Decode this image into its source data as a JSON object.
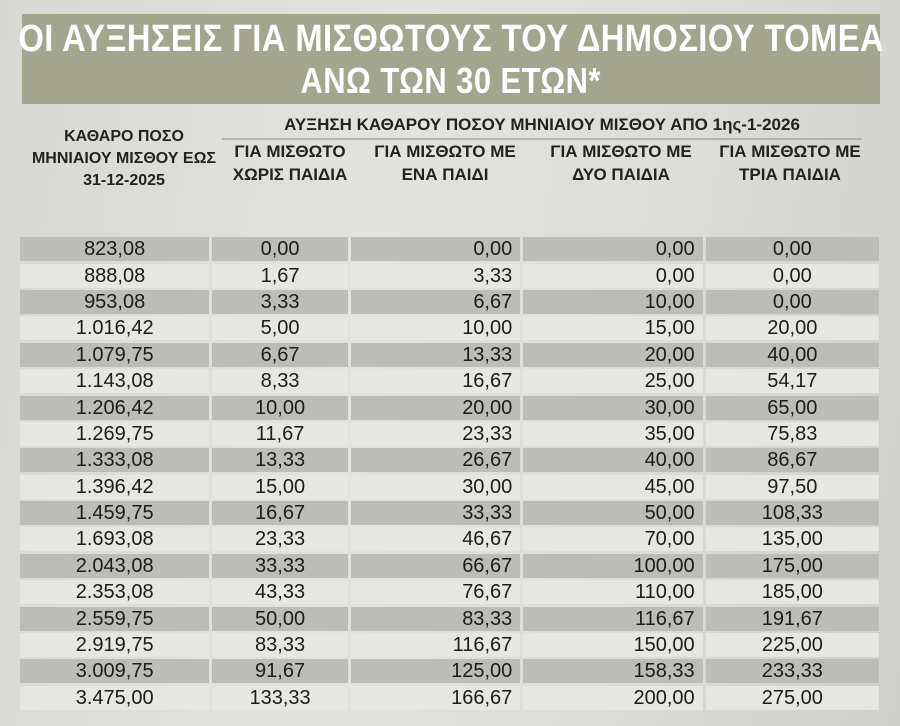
{
  "title_line1": "ΟΙ ΑΥΞΗΣΕΙΣ ΓΙΑ ΜΙΣΘΩΤΟΥΣ ΤΟΥ ΔΗΜΟΣΙΟΥ ΤΟΜΕΑ",
  "title_line2": "ΑΝΩ ΤΩΝ 30 ΕΤΩΝ*",
  "first_column_header": "ΚΑΘΑΡΟ ΠΟΣΟ ΜΗΝΙΑΙΟΥ ΜΙΣΘΟΥ ΕΩΣ 31-12-2025",
  "group_header": "ΑΥΞΗΣΗ ΚΑΘΑΡΟΥ ΠΟΣΟΥ ΜΗΝΙΑΙΟΥ ΜΙΣΘΟΥ ΑΠΟ 1ης-1-2026",
  "sub_headers": [
    "ΓΙΑ ΜΙΣΘΩΤΟ ΧΩΡΙΣ ΠΑΙΔΙΑ",
    "ΓΙΑ ΜΙΣΘΩΤΟ ΜΕ ΕΝΑ ΠΑΙΔΙ",
    "ΓΙΑ ΜΙΣΘΩΤΟ ΜΕ ΔΥΟ ΠΑΙΔΙΑ",
    "ΓΙΑ ΜΙΣΘΩΤΟ ΜΕ ΤΡΙΑ ΠΑΙΔΙΑ"
  ],
  "rows": [
    [
      "823,08",
      "0,00",
      "0,00",
      "0,00",
      "0,00"
    ],
    [
      "888,08",
      "1,67",
      "3,33",
      "0,00",
      "0,00"
    ],
    [
      "953,08",
      "3,33",
      "6,67",
      "10,00",
      "0,00"
    ],
    [
      "1.016,42",
      "5,00",
      "10,00",
      "15,00",
      "20,00"
    ],
    [
      "1.079,75",
      "6,67",
      "13,33",
      "20,00",
      "40,00"
    ],
    [
      "1.143,08",
      "8,33",
      "16,67",
      "25,00",
      "54,17"
    ],
    [
      "1.206,42",
      "10,00",
      "20,00",
      "30,00",
      "65,00"
    ],
    [
      "1.269,75",
      "11,67",
      "23,33",
      "35,00",
      "75,83"
    ],
    [
      "1.333,08",
      "13,33",
      "26,67",
      "40,00",
      "86,67"
    ],
    [
      "1.396,42",
      "15,00",
      "30,00",
      "45,00",
      "97,50"
    ],
    [
      "1.459,75",
      "16,67",
      "33,33",
      "50,00",
      "108,33"
    ],
    [
      "1.693,08",
      "23,33",
      "46,67",
      "70,00",
      "135,00"
    ],
    [
      "2.043,08",
      "33,33",
      "66,67",
      "100,00",
      "175,00"
    ],
    [
      "2.353,08",
      "43,33",
      "76,67",
      "110,00",
      "185,00"
    ],
    [
      "2.559,75",
      "50,00",
      "83,33",
      "116,67",
      "191,67"
    ],
    [
      "2.919,75",
      "83,33",
      "116,67",
      "150,00",
      "225,00"
    ],
    [
      "3.009,75",
      "91,67",
      "125,00",
      "158,33",
      "233,33"
    ],
    [
      "3.475,00",
      "133,33",
      "166,67",
      "200,00",
      "275,00"
    ]
  ]
}
